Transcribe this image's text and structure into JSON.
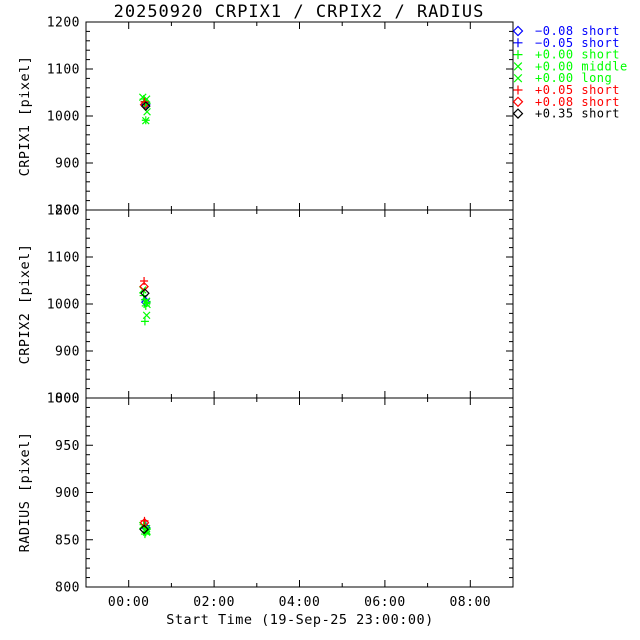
{
  "figure": {
    "background": "#ffffff",
    "frame_color": "#000000"
  },
  "chart_data": {
    "type": "scatter",
    "title": "20250920 CRPIX1 / CRPIX2 / RADIUS",
    "x": {
      "label": "Start Time (19-Sep-25 23:00:00)",
      "window_hours": 10,
      "major_ticks": [
        {
          "t": 1,
          "label": "00:00"
        },
        {
          "t": 3,
          "label": "02:00"
        },
        {
          "t": 5,
          "label": "04:00"
        },
        {
          "t": 7,
          "label": "06:00"
        },
        {
          "t": 9,
          "label": "08:00"
        }
      ],
      "minor_step_hours": 1,
      "grid": false
    },
    "panels": [
      {
        "key": "crpix1",
        "ylabel": "CRPIX1 [pixel]",
        "ylim": [
          800,
          1200
        ],
        "yticks": [
          800,
          900,
          1000,
          1100,
          1200
        ],
        "major_step": 100,
        "minor_step": 20
      },
      {
        "key": "crpix2",
        "ylabel": "CRPIX2 [pixel]",
        "ylim": [
          800,
          1200
        ],
        "yticks": [
          800,
          900,
          1000,
          1100,
          1200
        ],
        "major_step": 100,
        "minor_step": 20
      },
      {
        "key": "radius",
        "ylabel": "RADIUS [pixel]",
        "ylim": [
          800,
          1000
        ],
        "yticks": [
          800,
          850,
          900,
          950,
          1000
        ],
        "major_step": 50,
        "minor_step": 10
      }
    ],
    "legend_position": "top-right-outside",
    "series": [
      {
        "label": "−0.08 short",
        "color": "#0000ff",
        "marker": "diamond",
        "points": {
          "crpix1": [
            [
              1.4,
              1024
            ]
          ],
          "crpix2": [
            [
              1.4,
              1004
            ]
          ],
          "radius": [
            [
              1.4,
              863
            ]
          ]
        }
      },
      {
        "label": "−0.05 short",
        "color": "#0000ff",
        "marker": "plus",
        "points": {
          "crpix1": [
            [
              1.4,
              1029
            ]
          ],
          "crpix2": [
            [
              1.4,
              1010
            ]
          ],
          "radius": [
            [
              1.4,
              865
            ]
          ]
        }
      },
      {
        "label": "+0.00 short",
        "color": "#00ff00",
        "marker": "plus",
        "points": {
          "crpix1": [
            [
              1.35,
              1036
            ],
            [
              1.38,
              1031
            ],
            [
              1.42,
              1027
            ],
            [
              1.4,
              1021
            ],
            [
              1.4,
              991
            ]
          ],
          "crpix2": [
            [
              1.35,
              1018
            ],
            [
              1.38,
              1009
            ],
            [
              1.42,
              1002
            ],
            [
              1.4,
              996
            ],
            [
              1.38,
              963
            ]
          ],
          "radius": [
            [
              1.35,
              866
            ],
            [
              1.38,
              863
            ],
            [
              1.42,
              861
            ],
            [
              1.4,
              858
            ],
            [
              1.38,
              856
            ]
          ]
        }
      },
      {
        "label": "+0.00 middle",
        "color": "#00ff00",
        "marker": "x",
        "points": {
          "crpix1": [
            [
              1.33,
              1040
            ],
            [
              1.42,
              1036
            ],
            [
              1.43,
              1009
            ]
          ],
          "crpix2": [
            [
              1.33,
              1030
            ],
            [
              1.42,
              1006
            ],
            [
              1.43,
              999
            ]
          ],
          "radius": [
            [
              1.33,
              865
            ],
            [
              1.42,
              862
            ],
            [
              1.43,
              859
            ]
          ]
        }
      },
      {
        "label": "+0.00 long",
        "color": "#00ff00",
        "marker": "x",
        "points": {
          "crpix1": [
            [
              1.4,
              990
            ]
          ],
          "crpix2": [
            [
              1.42,
              976
            ]
          ],
          "radius": [
            [
              1.42,
              858
            ]
          ]
        }
      },
      {
        "label": "+0.05 short",
        "color": "#ff0000",
        "marker": "plus",
        "points": {
          "crpix1": [
            [
              1.37,
              1030
            ]
          ],
          "crpix2": [
            [
              1.36,
              1049
            ]
          ],
          "radius": [
            [
              1.37,
              870
            ]
          ]
        }
      },
      {
        "label": "+0.08 short",
        "color": "#ff0000",
        "marker": "diamond",
        "points": {
          "crpix1": [
            [
              1.37,
              1024
            ]
          ],
          "crpix2": [
            [
              1.36,
              1037
            ]
          ],
          "radius": [
            [
              1.37,
              868
            ]
          ]
        }
      },
      {
        "label": "+0.35 short",
        "color": "#000000",
        "marker": "diamond",
        "points": {
          "crpix1": [
            [
              1.4,
              1021
            ]
          ],
          "crpix2": [
            [
              1.38,
              1023
            ]
          ],
          "radius": [
            [
              1.36,
              861
            ]
          ]
        }
      }
    ]
  }
}
